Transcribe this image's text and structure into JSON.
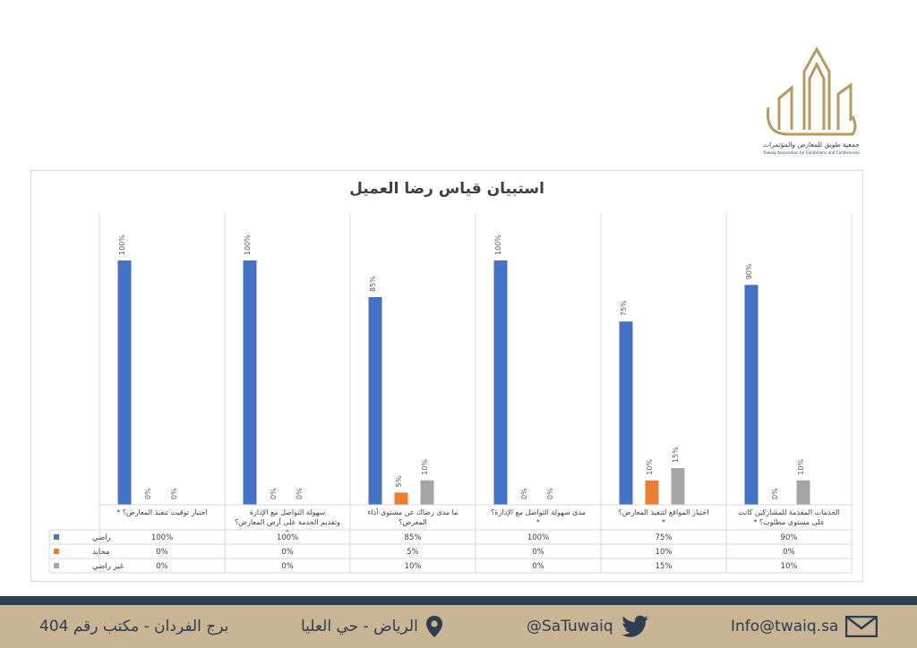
{
  "logo": {
    "name_ar": "جمعية طويق للمعارض والمؤتمرات",
    "name_en": "Tuwaiq Association for Exhibitions and Conferences"
  },
  "colors": {
    "rady": "#4472c4",
    "muhayid": "#ed7d31",
    "ghayr_rady": "#a5a5a5",
    "navy": "#2d3e50",
    "gold": "#c9b493"
  },
  "chart_data": {
    "type": "bar",
    "title": "استبيان قياس رضا العميل",
    "categories": [
      "اختيار توقيت تنفيذ المعارض؟ *",
      "سهولة التواصل مع الإدارة وتقديم الخدمة على أرض المعارض؟ *",
      "ما مدى رضاك عن مستوى أداء المعرض؟",
      "مدى سهولة التواصل مع الإدارة؟ *",
      "اختيار المواقع لتنفيذ المعارض؟ *",
      "الخدمات المقدمة للمشاركين كانت على مستوى مطلوب؟ *"
    ],
    "series": [
      {
        "name": "راضي",
        "values": [
          100,
          100,
          85,
          100,
          75,
          90
        ],
        "labels": [
          "100%",
          "100%",
          "85%",
          "100%",
          "75%",
          "90%"
        ]
      },
      {
        "name": "محايد",
        "values": [
          0,
          0,
          5,
          0,
          10,
          0
        ],
        "labels": [
          "0%",
          "0%",
          "5%",
          "0%",
          "10%",
          "0%"
        ]
      },
      {
        "name": "غير راضي",
        "values": [
          0,
          0,
          10,
          0,
          15,
          10
        ],
        "labels": [
          "0%",
          "0%",
          "10%",
          "0%",
          "15%",
          "10%"
        ]
      }
    ],
    "ylim": [
      0,
      100
    ],
    "legend": "data-table"
  },
  "footer": {
    "address": "برج الفردان - مكتب رقم 404",
    "location": "الرياض - حي العليا",
    "twitter": "@SaTuwaiq",
    "email": "Info@twaiq.sa"
  }
}
